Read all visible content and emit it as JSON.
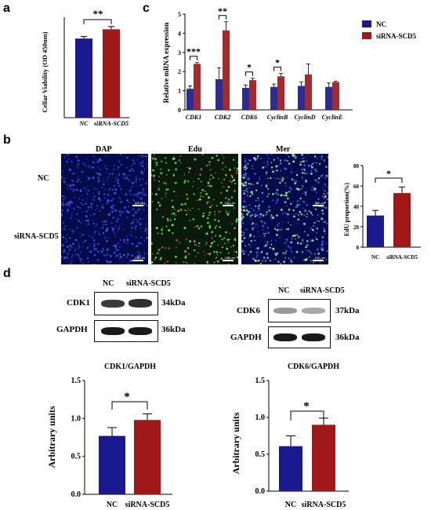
{
  "colors": {
    "nc": "#1a1a8e",
    "si": "#a01818"
  },
  "panels": {
    "a": "a",
    "b": "b",
    "c": "c",
    "d": "d"
  },
  "panel_a": {
    "ylabel": "Cellar Viability (OD 450nm)",
    "significance": "**",
    "tick_nc": "NC",
    "tick_si": "siRNA-SCD5"
  },
  "panel_c": {
    "ylabel": "Relative mRNA expression",
    "legend_nc": "NC",
    "legend_si": "siRNA-SCD5"
  },
  "panel_b": {
    "col_dap": "DAP",
    "col_edu": "Edu",
    "col_mer": "Mer",
    "row_nc": "NC",
    "row_si": "siRNA-SCD5",
    "scale": "100 μm",
    "ylabel": "EdU proportion(%)",
    "significance": "*",
    "tick_nc": "NC",
    "tick_si": "siRNA-SCD5"
  },
  "panel_d": {
    "left": {
      "cols": [
        "NC",
        "siRNA-SCD5"
      ],
      "rows": [
        "CDK1",
        "GAPDH"
      ],
      "kda": [
        "34kDa",
        "36kDa"
      ],
      "title": "CDK1/GAPDH",
      "ylabel": "Arbitrary units",
      "significance": "*",
      "tick_nc": "NC",
      "tick_si": "siRNA-SCD5"
    },
    "right": {
      "cols": [
        "NC",
        "siRNA-SCD5"
      ],
      "rows": [
        "CDK6",
        "GAPDH"
      ],
      "kda": [
        "37kDa",
        "36kDa"
      ],
      "title": "CDK6/GAPDH",
      "ylabel": "Arbitrary units",
      "significance": "*",
      "tick_nc": "NC",
      "tick_si": "siRNA-SCD5"
    }
  },
  "chart_data": [
    {
      "id": "viability",
      "type": "bar",
      "categories": [
        "NC",
        "siRNA-SCD5"
      ],
      "values": [
        1.97,
        2.2
      ],
      "errors": [
        0.05,
        0.07
      ],
      "ylim": [
        0,
        2.5
      ],
      "ylabel": "Cellar Viability (OD 450nm)",
      "yticks": []
    },
    {
      "id": "mrna",
      "type": "bar",
      "categories": [
        "CDK1",
        "CDK2",
        "CDK6",
        "CyclinB",
        "CyclinD",
        "CyclinE"
      ],
      "series": [
        {
          "name": "NC",
          "values": [
            1.1,
            1.6,
            1.15,
            1.2,
            1.25,
            1.2
          ],
          "errors": [
            0.15,
            0.6,
            0.15,
            0.15,
            0.2,
            0.2
          ]
        },
        {
          "name": "siRNA-SCD5",
          "values": [
            2.4,
            4.15,
            1.55,
            1.75,
            1.85,
            1.45
          ],
          "errors": [
            0.07,
            0.45,
            0.1,
            0.15,
            0.55,
            0.05
          ]
        }
      ],
      "ylim": [
        0,
        5
      ],
      "yticks": [
        0,
        1,
        2,
        3,
        4,
        5
      ],
      "ylabel": "Relative mRNA expression",
      "significance": [
        "***",
        "**",
        "*",
        "*",
        "",
        ""
      ]
    },
    {
      "id": "edu",
      "type": "bar",
      "categories": [
        "NC",
        "siRNA-SCD5"
      ],
      "values": [
        31,
        53
      ],
      "errors": [
        5,
        6
      ],
      "ylim": [
        0,
        80
      ],
      "yticks": [
        0,
        20,
        40,
        60,
        80
      ],
      "ylabel": "EdU proportion(%)"
    },
    {
      "id": "cdk1",
      "type": "bar",
      "title": "CDK1/GAPDH",
      "categories": [
        "NC",
        "siRNA-SCD5"
      ],
      "values": [
        0.77,
        0.98
      ],
      "errors": [
        0.11,
        0.08
      ],
      "ylim": [
        0,
        1.5
      ],
      "yticks": [
        0.0,
        0.5,
        1.0,
        1.5
      ],
      "ylabel": "Arbitrary units"
    },
    {
      "id": "cdk6",
      "type": "bar",
      "title": "CDK6/GAPDH",
      "categories": [
        "NC",
        "siRNA-SCD5"
      ],
      "values": [
        0.61,
        0.9
      ],
      "errors": [
        0.14,
        0.09
      ],
      "ylim": [
        0,
        1.5
      ],
      "yticks": [
        0.0,
        0.5,
        1.0,
        1.5
      ],
      "ylabel": "Arbitrary units"
    }
  ]
}
